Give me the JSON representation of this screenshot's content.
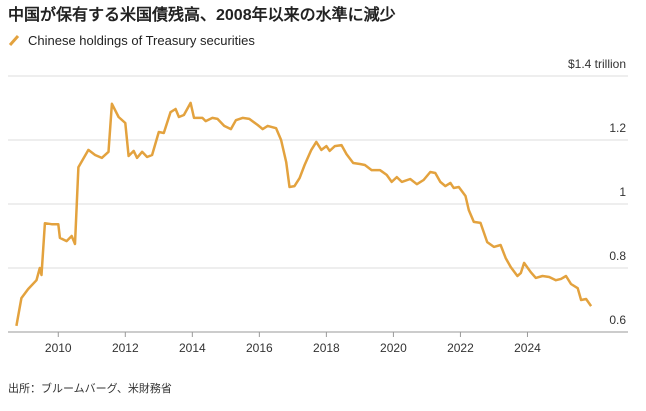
{
  "chart_data": {
    "type": "line",
    "title": "中国が保有する米国債残高、2008年以来の水準に減少",
    "source": "出所：ブルームバーグ、米財務省",
    "x": [
      2008.75,
      2008.9,
      2009.1,
      2009.35,
      2009.45,
      2009.5,
      2009.6,
      2009.8,
      2010.0,
      2010.05,
      2010.25,
      2010.4,
      2010.5,
      2010.6,
      2010.9,
      2011.1,
      2011.3,
      2011.5,
      2011.6,
      2011.8,
      2012.0,
      2012.1,
      2012.25,
      2012.35,
      2012.5,
      2012.65,
      2012.8,
      2013.0,
      2013.15,
      2013.35,
      2013.5,
      2013.6,
      2013.75,
      2013.95,
      2014.05,
      2014.3,
      2014.4,
      2014.6,
      2014.75,
      2014.95,
      2015.15,
      2015.3,
      2015.5,
      2015.7,
      2015.95,
      2016.1,
      2016.25,
      2016.5,
      2016.65,
      2016.8,
      2016.9,
      2017.05,
      2017.2,
      2017.35,
      2017.55,
      2017.7,
      2017.85,
      2018.0,
      2018.1,
      2018.25,
      2018.45,
      2018.6,
      2018.8,
      2019.0,
      2019.15,
      2019.35,
      2019.6,
      2019.8,
      2019.95,
      2020.1,
      2020.25,
      2020.5,
      2020.7,
      2020.9,
      2021.1,
      2021.25,
      2021.4,
      2021.55,
      2021.7,
      2021.8,
      2021.95,
      2022.15,
      2022.25,
      2022.4,
      2022.6,
      2022.8,
      2023.0,
      2023.2,
      2023.35,
      2023.5,
      2023.7,
      2023.8,
      2023.9,
      2024.1,
      2024.25,
      2024.45,
      2024.65,
      2024.85,
      2025.0,
      2025.15,
      2025.3,
      2025.5,
      2025.6,
      2025.75,
      2025.9
    ],
    "series": [
      {
        "name": "Chinese holdings of Treasury securities",
        "color": "#e3a23e",
        "values": [
          0.619,
          0.706,
          0.734,
          0.762,
          0.8,
          0.778,
          0.94,
          0.937,
          0.937,
          0.894,
          0.884,
          0.9,
          0.875,
          1.115,
          1.169,
          1.153,
          1.144,
          1.163,
          1.313,
          1.272,
          1.253,
          1.15,
          1.166,
          1.144,
          1.163,
          1.147,
          1.153,
          1.225,
          1.222,
          1.287,
          1.297,
          1.272,
          1.278,
          1.316,
          1.269,
          1.269,
          1.259,
          1.269,
          1.266,
          1.244,
          1.234,
          1.262,
          1.269,
          1.266,
          1.247,
          1.234,
          1.244,
          1.237,
          1.2,
          1.131,
          1.053,
          1.056,
          1.081,
          1.122,
          1.169,
          1.194,
          1.169,
          1.181,
          1.166,
          1.181,
          1.184,
          1.156,
          1.128,
          1.125,
          1.122,
          1.106,
          1.106,
          1.091,
          1.069,
          1.084,
          1.069,
          1.078,
          1.062,
          1.075,
          1.1,
          1.097,
          1.069,
          1.056,
          1.066,
          1.05,
          1.053,
          1.025,
          0.981,
          0.944,
          0.941,
          0.881,
          0.866,
          0.872,
          0.831,
          0.803,
          0.775,
          0.784,
          0.816,
          0.787,
          0.769,
          0.775,
          0.772,
          0.762,
          0.766,
          0.775,
          0.75,
          0.737,
          0.7,
          0.703,
          0.681
        ]
      }
    ],
    "xlim": [
      2008.5,
      2027
    ],
    "xticks": [
      2010,
      2012,
      2014,
      2016,
      2018,
      2020,
      2022,
      2024
    ],
    "ylim": [
      0.6,
      1.4
    ],
    "yticks": [
      0.6,
      0.8,
      1.0,
      1.2,
      {
        "value": 1.4,
        "label": "$1.4 trillion"
      }
    ],
    "grid": true
  }
}
